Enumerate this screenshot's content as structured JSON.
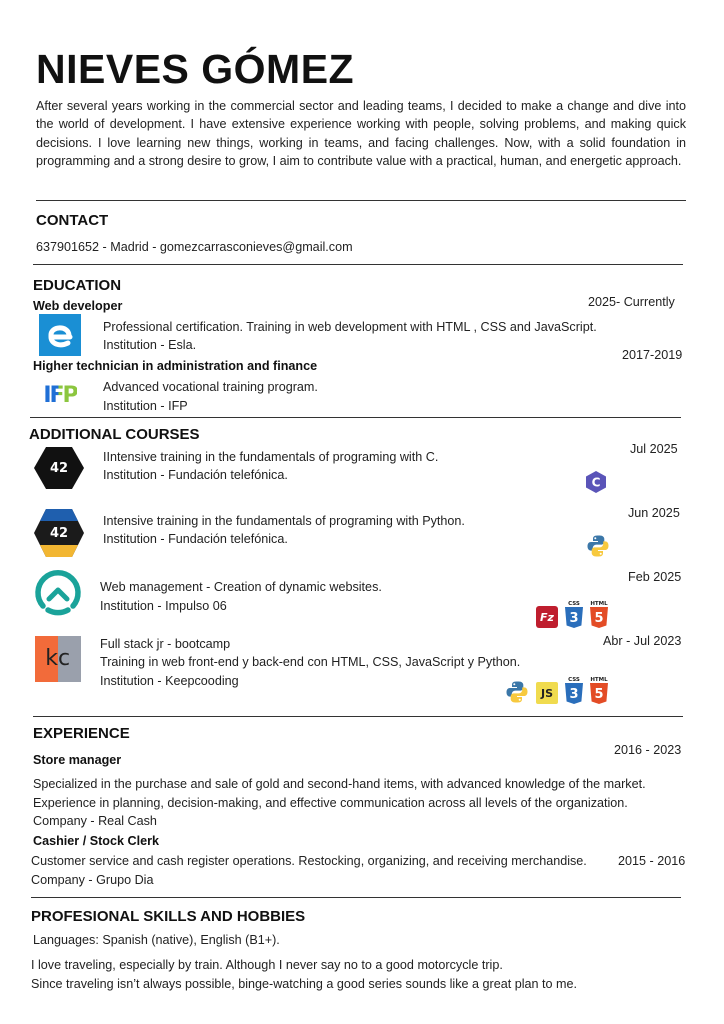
{
  "name": "NIEVES GÓMEZ",
  "summary": "After several years working in the commercial sector and leading teams, I decided to make a change and dive into the world of development. I have extensive experience working with people, solving problems, and making quick decisions. I love learning new things, working in teams, and facing challenges. Now, with a solid foundation in programming and a strong desire to grow, I aim to contribute value with a practical, human, and energetic approach.",
  "contact": {
    "heading": "CONTACT",
    "line": "637901652 - Madrid - gomezcarrasconieves@gmail.com"
  },
  "education": {
    "heading": "EDUCATION",
    "items": [
      {
        "title": "Web developer",
        "date": "2025- Currently",
        "desc": "Professional certification. Training in web development with HTML , CSS and JavaScript.",
        "institution": "Institution - Esla.",
        "logo": "esla-logo"
      },
      {
        "title": "Higher technician in administration and finance",
        "date": "2017-2019",
        "desc": "Advanced vocational training program.",
        "institution": "Institution - IFP",
        "logo": "ifp-logo",
        "logo_text": "IFP"
      }
    ]
  },
  "courses": {
    "heading": "ADDITIONAL COURSES",
    "items": [
      {
        "desc": "IIntensive training in the fundamentals of programing with C.",
        "institution": "Institution - Fundación telefónica.",
        "date": "Jul 2025",
        "logo_text": "42",
        "tech": [
          "c-icon"
        ]
      },
      {
        "desc": "Intensive training in the fundamentals of programing with Python.",
        "institution": "Institution - Fundación telefónica.",
        "date": "Jun 2025",
        "logo_text": "42",
        "tech": [
          "python-icon"
        ]
      },
      {
        "desc": "Web management - Creation of dynamic websites.",
        "institution": "Institution - Impulso 06",
        "date": "Feb 2025",
        "tech": [
          "filezilla-icon",
          "css3-icon",
          "html5-icon"
        ]
      },
      {
        "title": "Full stack jr - bootcamp",
        "desc": "Training in web front-end y back-end con HTML, CSS, JavaScript y Python.",
        "institution": "Institution - Keepcooding",
        "date": "Abr - Jul 2023",
        "logo_text": "kc",
        "tech": [
          "python-icon",
          "javascript-icon",
          "css3-icon",
          "html5-icon"
        ]
      }
    ]
  },
  "icons_text": {
    "css": "CSS",
    "html": "HTML",
    "c": "C",
    "js": "JS",
    "fz": "Fz",
    "n3": "3",
    "n5": "5"
  },
  "experience": {
    "heading": "EXPERIENCE",
    "items": [
      {
        "title": "Store manager",
        "date": "2016 - 2023",
        "lines": [
          "Specialized in the purchase and sale of gold and second-hand items, with advanced knowledge of the market.",
          "Experience in planning, decision-making, and effective communication across all levels of the organization."
        ],
        "company": "Company - Real Cash"
      },
      {
        "title": "Cashier / Stock Clerk",
        "date": "2015 - 2016",
        "lines": [
          "Customer service and cash register operations. Restocking, organizing, and receiving merchandise."
        ],
        "company": "Company - Grupo Dia"
      }
    ]
  },
  "skills": {
    "heading": "PROFESIONAL SKILLS AND HOBBIES",
    "languages": "Languages: Spanish (native), English (B1+).",
    "hobbies": [
      "I love traveling, especially by train. Although I never say no to a good motorcycle trip.",
      "Since traveling isn’t always possible, binge-watching a good series sounds like a great plan to me."
    ]
  },
  "colors": {
    "esla_blue": "#1a8fd4",
    "ifp_blue": "#1f6fd6",
    "ifp_green": "#8cc63f",
    "impulso_teal": "#1aa39a",
    "kc_orange": "#f26b3a",
    "kc_gray": "#9aa0ac",
    "c_purple": "#5a54b8",
    "python_blue": "#3b77a8",
    "python_yellow": "#f7c93e",
    "js_yellow": "#f0db4f",
    "css_blue": "#2a6ebb",
    "html_red": "#e34c26",
    "filezilla_red": "#bf1e2e"
  }
}
